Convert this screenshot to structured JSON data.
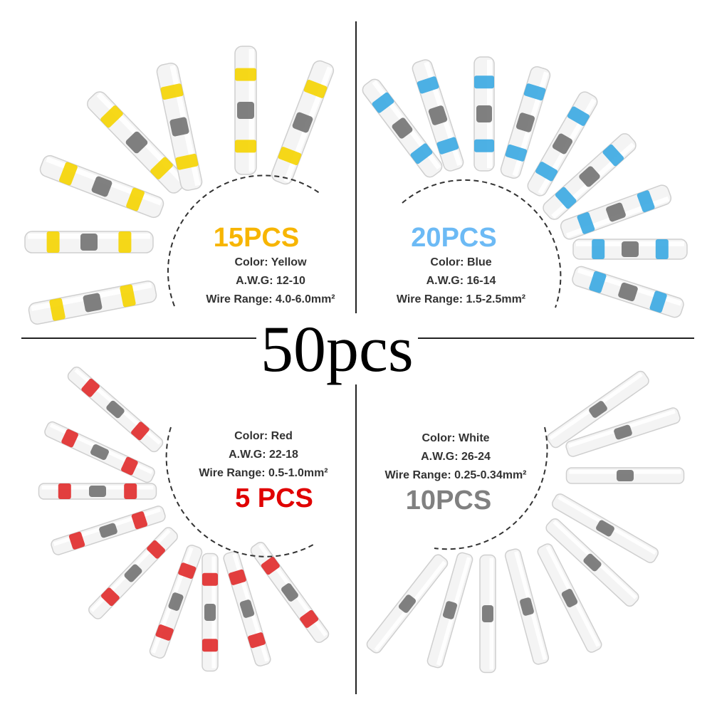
{
  "total_label": "50pcs",
  "colors": {
    "yellow": "#f7b500",
    "blue": "#6cbaf5",
    "red": "#e00000",
    "gray": "#808080"
  },
  "quadrants": [
    {
      "count": "15PCS",
      "color_label": "Color: Yellow",
      "awg": "A.W.G: 12-10",
      "wire_range": "Wire Range: 4.0-6.0mm²",
      "band_color": "#f5d400"
    },
    {
      "count": "20PCS",
      "color_label": "Color: Blue",
      "awg": "A.W.G: 16-14",
      "wire_range": "Wire Range: 1.5-2.5mm²",
      "band_color": "#3aa8e2"
    },
    {
      "count": "5 PCS",
      "color_label": "Color:  Red",
      "awg": "A.W.G: 22-18",
      "wire_range": "Wire Range: 0.5-1.0mm²",
      "band_color": "#e02a2a"
    },
    {
      "count": "10PCS",
      "color_label": "Color:  White",
      "awg": "A.W.G: 26-24",
      "wire_range": "Wire Range: 0.25-0.34mm²",
      "band_color": "#dcdcdc"
    }
  ]
}
